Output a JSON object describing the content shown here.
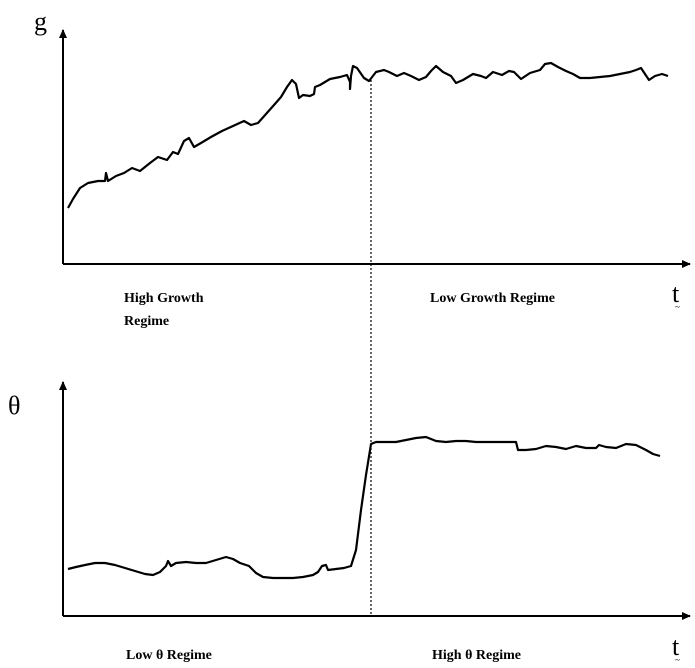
{
  "top_panel": {
    "y_axis_label": "g",
    "x_axis_label": "t",
    "left_regime_line1": "High Growth",
    "left_regime_line2": "Regime",
    "right_regime": "Low Growth Regime"
  },
  "bottom_panel": {
    "y_axis_label": "θ",
    "x_axis_label": "t",
    "left_regime": "Low θ Regime",
    "right_regime": "High θ Regime"
  },
  "colors": {
    "line": "#000000",
    "background": "#ffffff"
  }
}
